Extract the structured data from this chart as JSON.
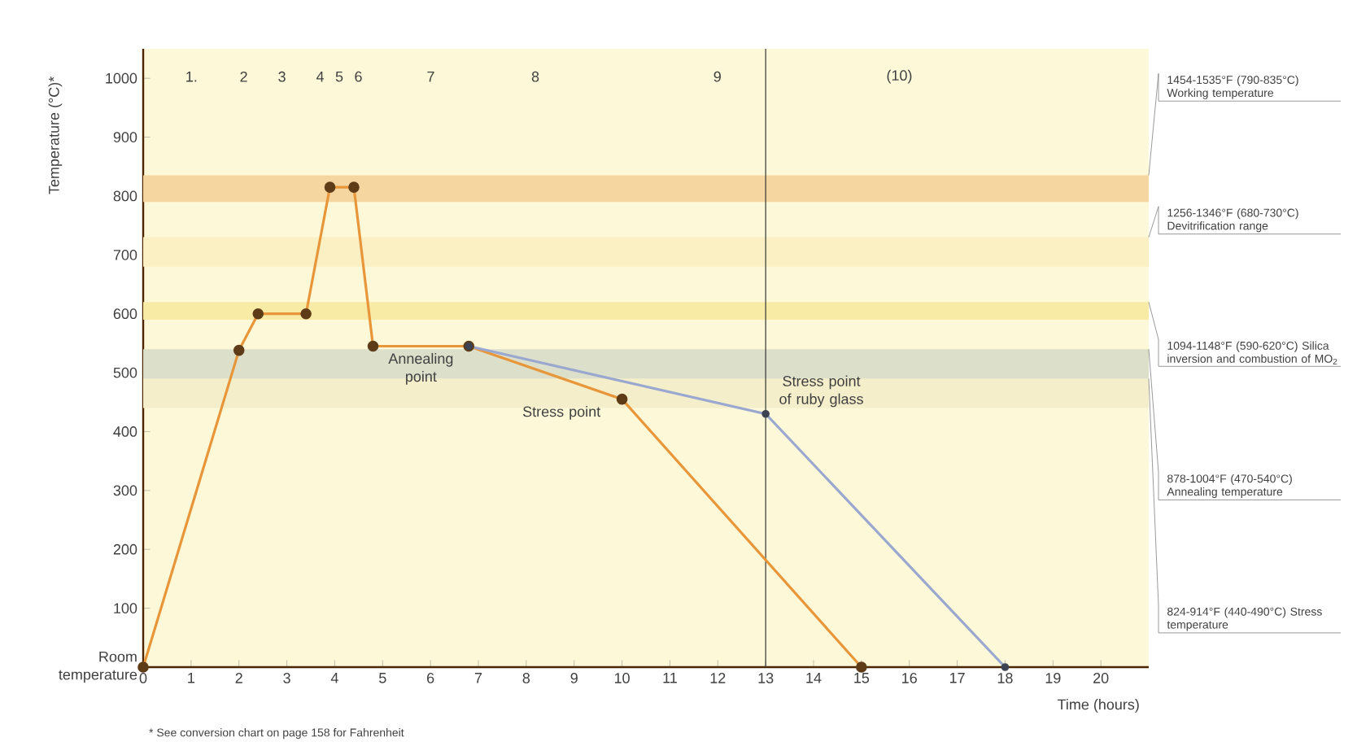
{
  "chart_data": {
    "type": "line",
    "xlabel": "Time (hours)",
    "ylabel": "Temperature (°C)*",
    "xlim": [
      0,
      21
    ],
    "xticks": [
      0,
      1,
      2,
      3,
      4,
      5,
      6,
      7,
      8,
      9,
      10,
      11,
      12,
      13,
      14,
      15,
      16,
      17,
      18,
      19,
      20
    ],
    "ylim": [
      0,
      1050
    ],
    "yticks": [
      {
        "value": 0,
        "label": "Room temperature"
      },
      100,
      200,
      300,
      400,
      500,
      600,
      700,
      800,
      900,
      1000
    ],
    "series": [
      {
        "color": "#e8963a",
        "x": [
          0,
          2,
          2.4,
          3.4,
          3.9,
          4.4,
          4.8,
          6.8,
          10,
          15
        ],
        "values": [
          0,
          538,
          600,
          600,
          815,
          815,
          545,
          545,
          455,
          0
        ]
      },
      {
        "color": "#9aa8d0",
        "x": [
          6.8,
          13,
          18
        ],
        "values": [
          545,
          430,
          0
        ]
      }
    ],
    "marker": "circle",
    "grid": false,
    "bands": [
      {
        "axis": "y",
        "from": 790,
        "to": 835,
        "label": "1454-1535°F (790-835°C) Working temperature",
        "color": "#f6d6a0"
      },
      {
        "axis": "y",
        "from": 680,
        "to": 730,
        "label": "1256-1346°F (680-730°C) Devitrification range",
        "color": "#fbf0c4"
      },
      {
        "axis": "y",
        "from": 590,
        "to": 620,
        "label": "1094-1148°F (590-620°C) Silica inversion and combustion of MO$_{2}$",
        "color": "#f8eba6"
      },
      {
        "axis": "y",
        "from": 470,
        "to": 540,
        "label": "878-1004°F (470-540°C) Annealing temperature",
        "color": "#dcdfca"
      },
      {
        "axis": "y",
        "from": 440,
        "to": 490,
        "label": "824-914°F (440-490°C) Stress temperature",
        "color": "#f4eecb"
      }
    ],
    "ref_lines": [
      {
        "axis": "x",
        "value": 13,
        "color": "#333333"
      }
    ],
    "annotations": [
      "1.",
      "2",
      "3",
      "4",
      "5",
      "6",
      "7",
      "8",
      "9",
      "(10)",
      {
        "text": "Annealing point",
        "x": 5.8,
        "y": 545
      },
      {
        "text": "Stress point",
        "x": 10,
        "y": 455
      },
      {
        "text": "Stress point of ruby glass",
        "x": 13,
        "y": 430
      },
      "* See conversion chart on page 158 for Fahrenheit"
    ]
  }
}
